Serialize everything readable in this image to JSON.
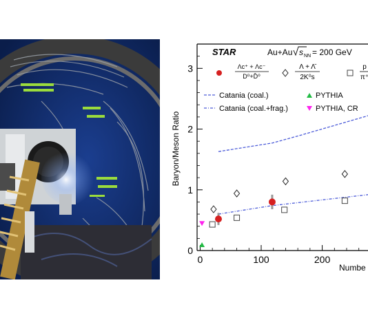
{
  "photo": {
    "description_icon": "detector-photo"
  },
  "chart_data": {
    "type": "scatter",
    "experiment_label": "STAR",
    "system_label_prefix": "Au+Au",
    "system_label_energy": "= 200 GeV",
    "ylabel": "Baryon/Meson Ratio",
    "xlabel": "Numbe",
    "xlim": [
      -5,
      275
    ],
    "ylim": [
      0,
      3.4
    ],
    "x_ticks": [
      0,
      100,
      200
    ],
    "x_tick_labels": [
      "0",
      "100",
      "200"
    ],
    "y_ticks": [
      0,
      1,
      2,
      3
    ],
    "y_tick_labels": [
      "0",
      "1",
      "2",
      "3"
    ],
    "legend_ratio_1": {
      "numerator": "Λc⁺ + Λc⁻",
      "denominator": "D⁰+D̄⁰",
      "marker": "filled-circle",
      "color": "#d62020"
    },
    "legend_ratio_2": {
      "numerator": "Λ + Λ̄",
      "denominator": "2K⁰s",
      "marker": "open-diamond",
      "color": "#222222"
    },
    "legend_ratio_3": {
      "numerator": "p",
      "denominator": "π⁺",
      "marker": "open-square",
      "color": "#444444"
    },
    "legend_models": [
      {
        "name": "Catania (coal.)",
        "style": "dash",
        "color": "#4a5ad8"
      },
      {
        "name": "Catania (coal.+frag.)",
        "style": "dashdot",
        "color": "#4a5ad8"
      },
      {
        "name": "PYTHIA",
        "marker": "triangle-up",
        "color": "#22bb44"
      },
      {
        "name": "PYTHIA, CR",
        "marker": "triangle-down",
        "color": "#ff22ee"
      }
    ],
    "series": [
      {
        "name": "Λc⁺ + Λc⁻ / D⁰+D̄⁰",
        "marker": "filled-circle",
        "color": "#d62020",
        "points": [
          {
            "x": 30,
            "y": 0.52,
            "err": 0.1
          },
          {
            "x": 118,
            "y": 0.8,
            "err": 0.12
          }
        ]
      },
      {
        "name": "Λ + Λ̄ / 2K⁰s",
        "marker": "open-diamond",
        "color": "#222222",
        "points": [
          {
            "x": 22,
            "y": 0.68
          },
          {
            "x": 60,
            "y": 0.94
          },
          {
            "x": 140,
            "y": 1.14
          },
          {
            "x": 237,
            "y": 1.26
          }
        ]
      },
      {
        "name": "p / π⁺",
        "marker": "open-square",
        "color": "#444444",
        "points": [
          {
            "x": 20,
            "y": 0.43
          },
          {
            "x": 60,
            "y": 0.54
          },
          {
            "x": 138,
            "y": 0.67
          },
          {
            "x": 237,
            "y": 0.82
          }
        ]
      },
      {
        "name": "PYTHIA",
        "marker": "triangle-up",
        "color": "#22bb44",
        "points": [
          {
            "x": 3,
            "y": 0.09
          }
        ]
      },
      {
        "name": "PYTHIA, CR",
        "marker": "triangle-down",
        "color": "#ff22ee",
        "points": [
          {
            "x": 3,
            "y": 0.45
          }
        ]
      }
    ],
    "model_curves": [
      {
        "name": "Catania (coal.)",
        "color": "#4a5ad8",
        "points": [
          {
            "x": 30,
            "y": 1.63
          },
          {
            "x": 118,
            "y": 1.77
          },
          {
            "x": 165,
            "y": 1.9
          },
          {
            "x": 275,
            "y": 2.22
          }
        ]
      },
      {
        "name": "Catania (coal.+frag.)",
        "color": "#4a5ad8",
        "points": [
          {
            "x": 30,
            "y": 0.6
          },
          {
            "x": 118,
            "y": 0.74
          },
          {
            "x": 275,
            "y": 0.92
          }
        ]
      }
    ]
  }
}
